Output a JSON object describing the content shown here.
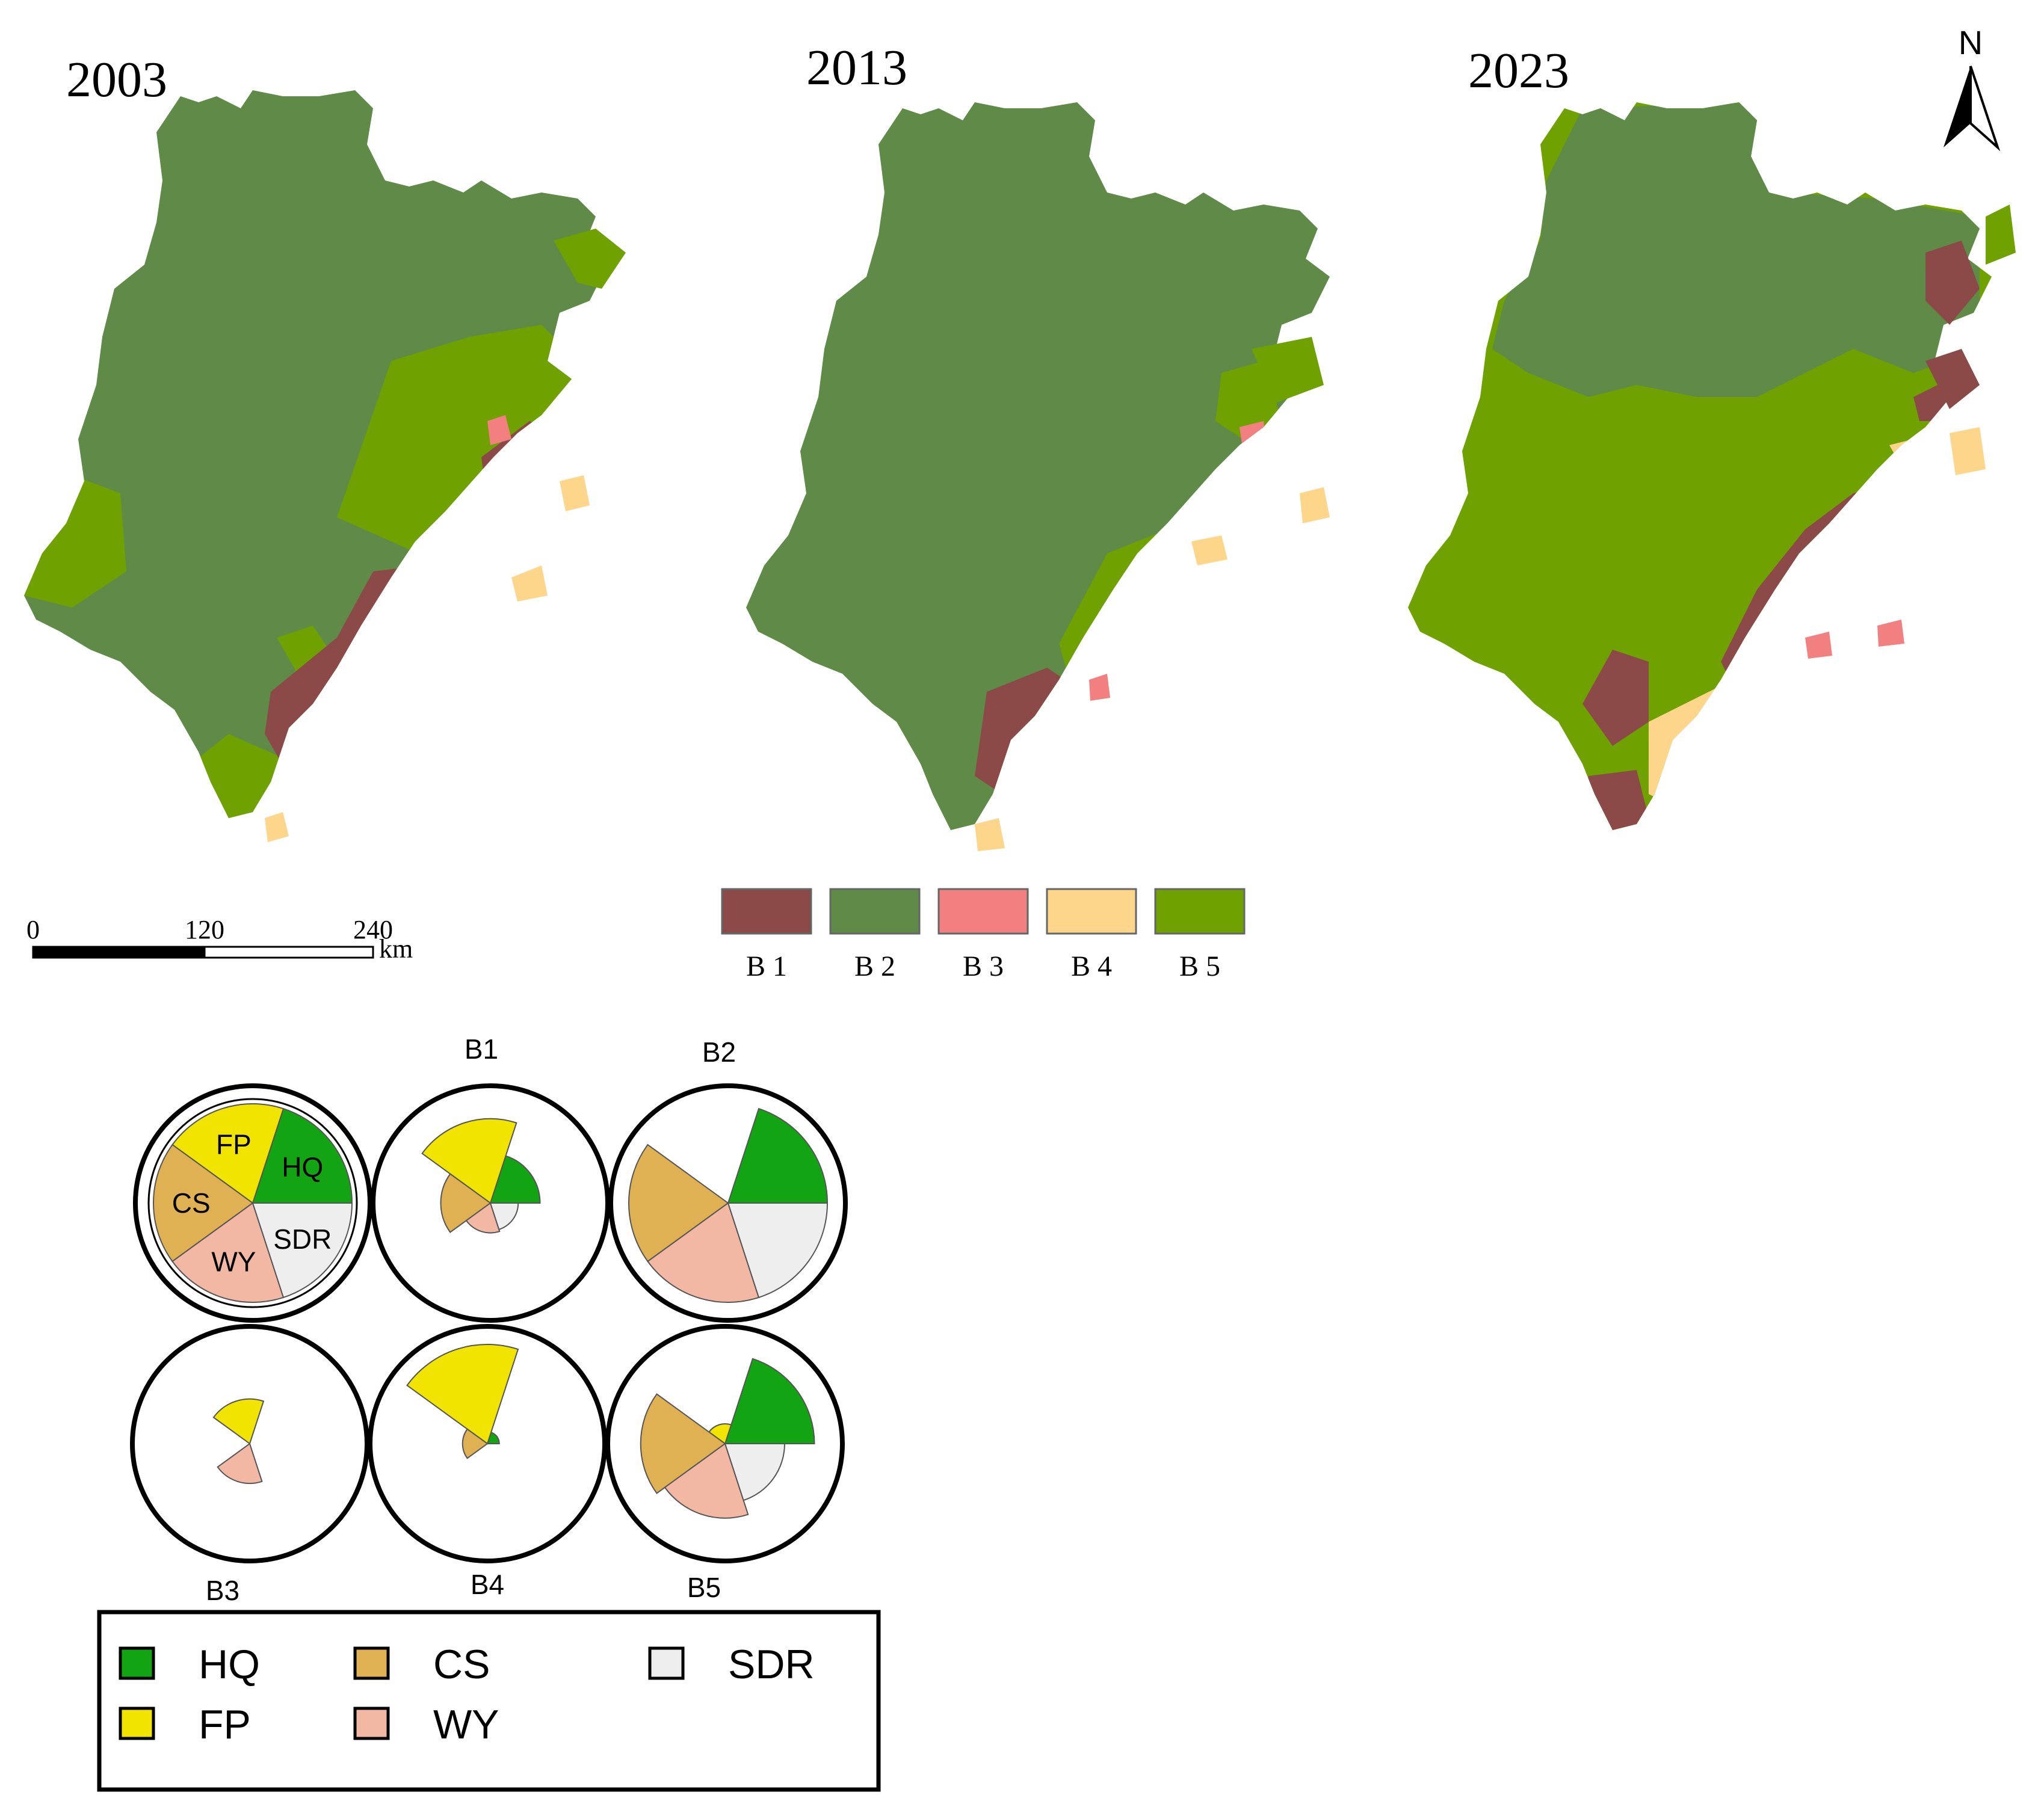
{
  "maps": {
    "years": [
      "2003",
      "2013",
      "2023"
    ]
  },
  "north_arrow": {
    "label": "N"
  },
  "scale_bar": {
    "ticks": [
      "0",
      "120",
      "240"
    ],
    "unit": "km"
  },
  "legend_bundles": {
    "items": [
      {
        "label": "B 1",
        "color": "#8b4a48"
      },
      {
        "label": "B 2",
        "color": "#5f8a47"
      },
      {
        "label": "B 3",
        "color": "#f28080"
      },
      {
        "label": "B 4",
        "color": "#fdd58b"
      },
      {
        "label": "B 5",
        "color": "#6fa200"
      }
    ]
  },
  "rose_charts": {
    "services": [
      {
        "key": "HQ",
        "color": "#13a413"
      },
      {
        "key": "FP",
        "color": "#f1e400"
      },
      {
        "key": "CS",
        "color": "#e0b153"
      },
      {
        "key": "WY",
        "color": "#f3b8a3"
      },
      {
        "key": "SDR",
        "color": "#eeeeee"
      }
    ],
    "panels": [
      {
        "label": "",
        "values": {
          "HQ": 1.0,
          "FP": 1.0,
          "CS": 1.0,
          "WY": 1.0,
          "SDR": 1.0
        }
      },
      {
        "label": "B1",
        "values": {
          "HQ": 0.5,
          "FP": 0.85,
          "CS": 0.5,
          "WY": 0.3,
          "SDR": 0.28
        }
      },
      {
        "label": "B2",
        "values": {
          "HQ": 1.0,
          "FP": 0.0,
          "CS": 1.0,
          "WY": 1.0,
          "SDR": 1.0
        }
      },
      {
        "label": "B3",
        "values": {
          "HQ": 0.0,
          "FP": 0.45,
          "CS": 0.0,
          "WY": 0.4,
          "SDR": 0.0
        }
      },
      {
        "label": "B4",
        "values": {
          "HQ": 0.12,
          "FP": 1.0,
          "CS": 0.25,
          "WY": 0.0,
          "SDR": 0.0
        }
      },
      {
        "label": "B5",
        "values": {
          "HQ": 0.9,
          "FP": 0.2,
          "CS": 0.85,
          "WY": 0.75,
          "SDR": 0.6
        }
      }
    ]
  },
  "legend_services": {
    "items": [
      {
        "label": "HQ",
        "color": "#13a413"
      },
      {
        "label": "CS",
        "color": "#e0b153"
      },
      {
        "label": "SDR",
        "color": "#eeeeee"
      },
      {
        "label": "FP",
        "color": "#f1e400"
      },
      {
        "label": "WY",
        "color": "#f3b8a3"
      }
    ]
  }
}
